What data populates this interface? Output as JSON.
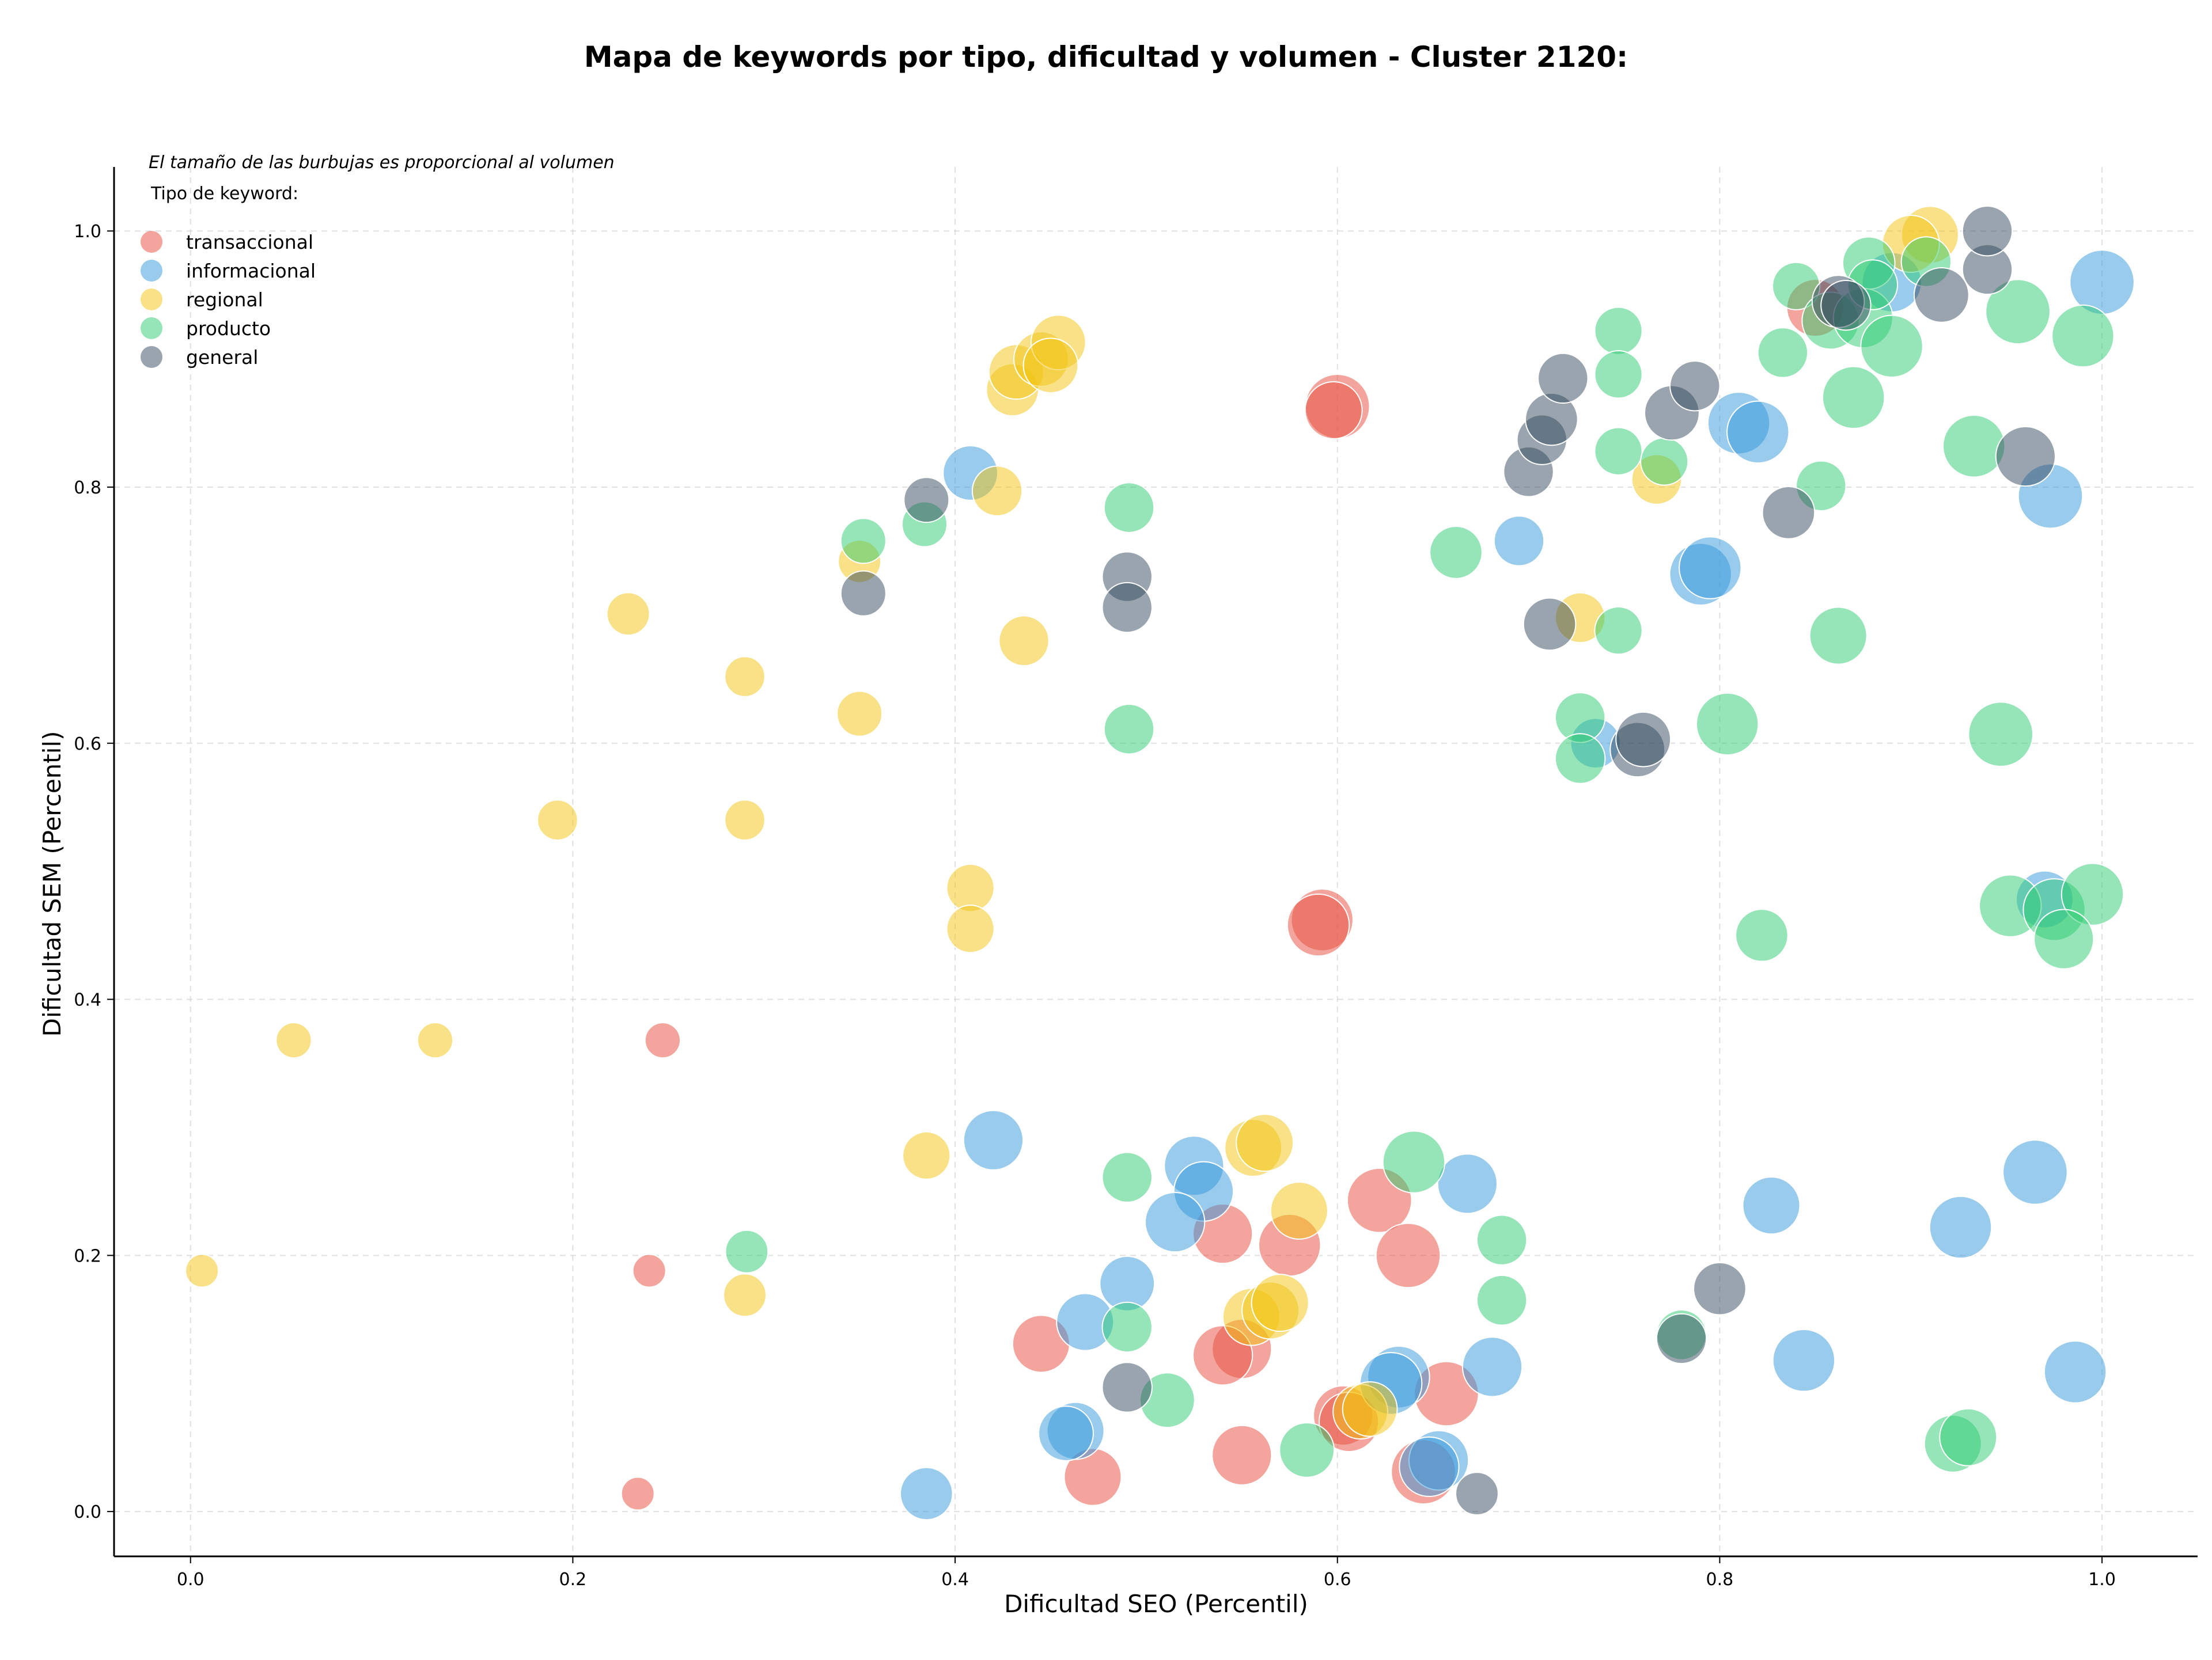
{
  "chart_data": {
    "type": "scatter",
    "title": "Mapa de keywords por tipo, dificultad y volumen - Cluster 2120:",
    "xlabel": "Dificultad SEO (Percentil)",
    "ylabel": "Dificultad SEM (Percentil)",
    "xlim": [
      -0.04,
      1.05
    ],
    "ylim": [
      -0.035,
      1.05
    ],
    "xticks": [
      0.0,
      0.2,
      0.4,
      0.6,
      0.8,
      1.0
    ],
    "yticks": [
      0.0,
      0.2,
      0.4,
      0.6,
      0.8,
      1.0
    ],
    "xtick_labels": [
      "0.0",
      "0.2",
      "0.4",
      "0.6",
      "0.8",
      "1.0"
    ],
    "ytick_labels": [
      "0.0",
      "0.2",
      "0.4",
      "0.6",
      "0.8",
      "1.0"
    ],
    "grid": true,
    "note": "El tamaño de las burbujas es proporcional al volumen",
    "legend_title": "Tipo de keyword:",
    "legend_position": "top-left",
    "series": [
      {
        "name": "transaccional",
        "color": "#e74c3c",
        "points": [
          [
            0.247,
            0.368,
            0.3
          ],
          [
            0.24,
            0.188,
            0.25
          ],
          [
            0.234,
            0.014,
            0.25
          ],
          [
            0.6,
            0.863,
            0.9
          ],
          [
            0.598,
            0.86,
            0.75
          ],
          [
            0.592,
            0.462,
            0.85
          ],
          [
            0.59,
            0.458,
            0.85
          ],
          [
            0.622,
            0.243,
            0.9
          ],
          [
            0.637,
            0.2,
            0.9
          ],
          [
            0.575,
            0.208,
            0.85
          ],
          [
            0.54,
            0.217,
            0.8
          ],
          [
            0.55,
            0.127,
            0.8
          ],
          [
            0.54,
            0.122,
            0.8
          ],
          [
            0.445,
            0.131,
            0.75
          ],
          [
            0.472,
            0.027,
            0.75
          ],
          [
            0.55,
            0.044,
            0.8
          ],
          [
            0.603,
            0.075,
            0.8
          ],
          [
            0.606,
            0.07,
            0.8
          ],
          [
            0.657,
            0.092,
            0.9
          ],
          [
            0.645,
            0.031,
            0.9
          ],
          [
            0.85,
            0.94,
            0.75
          ]
        ]
      },
      {
        "name": "informacional",
        "color": "#3498db",
        "points": [
          [
            0.408,
            0.811,
            0.7
          ],
          [
            0.42,
            0.29,
            0.8
          ],
          [
            0.525,
            0.27,
            0.8
          ],
          [
            0.53,
            0.25,
            0.8
          ],
          [
            0.515,
            0.226,
            0.8
          ],
          [
            0.49,
            0.178,
            0.7
          ],
          [
            0.468,
            0.148,
            0.75
          ],
          [
            0.463,
            0.063,
            0.75
          ],
          [
            0.458,
            0.061,
            0.7
          ],
          [
            0.385,
            0.014,
            0.65
          ],
          [
            0.668,
            0.256,
            0.8
          ],
          [
            0.632,
            0.105,
            0.85
          ],
          [
            0.628,
            0.1,
            0.85
          ],
          [
            0.681,
            0.113,
            0.8
          ],
          [
            0.653,
            0.04,
            0.8
          ],
          [
            0.648,
            0.035,
            0.8
          ],
          [
            0.79,
            0.732,
            0.85
          ],
          [
            0.795,
            0.737,
            0.85
          ],
          [
            0.81,
            0.85,
            0.85
          ],
          [
            0.82,
            0.843,
            0.85
          ],
          [
            0.695,
            0.758,
            0.6
          ],
          [
            0.735,
            0.6,
            0.6
          ],
          [
            0.827,
            0.239,
            0.75
          ],
          [
            0.844,
            0.118,
            0.85
          ],
          [
            0.926,
            0.222,
            0.85
          ],
          [
            0.965,
            0.265,
            0.9
          ],
          [
            0.986,
            0.109,
            0.85
          ],
          [
            0.973,
            0.793,
            0.9
          ],
          [
            1.0,
            0.96,
            0.9
          ],
          [
            0.97,
            0.478,
            0.75
          ],
          [
            0.89,
            0.96,
            0.8
          ]
        ]
      },
      {
        "name": "regional",
        "color": "#f1c40f",
        "points": [
          [
            0.006,
            0.188,
            0.25
          ],
          [
            0.054,
            0.368,
            0.3
          ],
          [
            0.128,
            0.368,
            0.3
          ],
          [
            0.192,
            0.54,
            0.4
          ],
          [
            0.29,
            0.54,
            0.4
          ],
          [
            0.29,
            0.652,
            0.4
          ],
          [
            0.229,
            0.701,
            0.45
          ],
          [
            0.35,
            0.742,
            0.45
          ],
          [
            0.35,
            0.623,
            0.5
          ],
          [
            0.422,
            0.797,
            0.6
          ],
          [
            0.436,
            0.68,
            0.6
          ],
          [
            0.43,
            0.876,
            0.65
          ],
          [
            0.432,
            0.89,
            0.7
          ],
          [
            0.445,
            0.9,
            0.7
          ],
          [
            0.454,
            0.913,
            0.7
          ],
          [
            0.45,
            0.895,
            0.7
          ],
          [
            0.408,
            0.487,
            0.55
          ],
          [
            0.408,
            0.455,
            0.55
          ],
          [
            0.385,
            0.278,
            0.55
          ],
          [
            0.29,
            0.169,
            0.45
          ],
          [
            0.556,
            0.284,
            0.75
          ],
          [
            0.562,
            0.288,
            0.75
          ],
          [
            0.58,
            0.235,
            0.75
          ],
          [
            0.555,
            0.152,
            0.75
          ],
          [
            0.565,
            0.157,
            0.75
          ],
          [
            0.57,
            0.163,
            0.75
          ],
          [
            0.612,
            0.078,
            0.7
          ],
          [
            0.617,
            0.08,
            0.7
          ],
          [
            0.727,
            0.698,
            0.6
          ],
          [
            0.767,
            0.806,
            0.6
          ],
          [
            0.91,
            0.997,
            0.75
          ],
          [
            0.9,
            0.99,
            0.75
          ]
        ]
      },
      {
        "name": "producto",
        "color": "#2ecc71",
        "points": [
          [
            0.352,
            0.758,
            0.5
          ],
          [
            0.384,
            0.771,
            0.5
          ],
          [
            0.491,
            0.784,
            0.6
          ],
          [
            0.491,
            0.611,
            0.6
          ],
          [
            0.291,
            0.203,
            0.45
          ],
          [
            0.49,
            0.261,
            0.6
          ],
          [
            0.49,
            0.144,
            0.6
          ],
          [
            0.511,
            0.087,
            0.7
          ],
          [
            0.584,
            0.048,
            0.7
          ],
          [
            0.64,
            0.273,
            0.85
          ],
          [
            0.686,
            0.212,
            0.6
          ],
          [
            0.686,
            0.165,
            0.6
          ],
          [
            0.662,
            0.749,
            0.65
          ],
          [
            0.727,
            0.62,
            0.6
          ],
          [
            0.727,
            0.588,
            0.6
          ],
          [
            0.747,
            0.922,
            0.55
          ],
          [
            0.747,
            0.888,
            0.55
          ],
          [
            0.747,
            0.828,
            0.55
          ],
          [
            0.771,
            0.82,
            0.55
          ],
          [
            0.747,
            0.688,
            0.55
          ],
          [
            0.78,
            0.138,
            0.6
          ],
          [
            0.804,
            0.615,
            0.85
          ],
          [
            0.822,
            0.45,
            0.65
          ],
          [
            0.833,
            0.905,
            0.6
          ],
          [
            0.84,
            0.957,
            0.55
          ],
          [
            0.853,
            0.801,
            0.6
          ],
          [
            0.862,
            0.684,
            0.75
          ],
          [
            0.858,
            0.93,
            0.75
          ],
          [
            0.87,
            0.87,
            0.85
          ],
          [
            0.878,
            0.975,
            0.65
          ],
          [
            0.875,
            0.932,
            0.8
          ],
          [
            0.89,
            0.91,
            0.85
          ],
          [
            0.908,
            0.976,
            0.6
          ],
          [
            0.933,
            0.832,
            0.85
          ],
          [
            0.956,
            0.937,
            0.9
          ],
          [
            0.947,
            0.607,
            0.9
          ],
          [
            0.99,
            0.918,
            0.85
          ],
          [
            0.952,
            0.473,
            0.85
          ],
          [
            0.975,
            0.47,
            0.85
          ],
          [
            0.995,
            0.482,
            0.85
          ],
          [
            0.98,
            0.447,
            0.8
          ],
          [
            0.922,
            0.053,
            0.75
          ],
          [
            0.93,
            0.058,
            0.75
          ],
          [
            0.88,
            0.958,
            0.6
          ]
        ]
      },
      {
        "name": "general",
        "color": "#34495e",
        "points": [
          [
            0.352,
            0.717,
            0.5
          ],
          [
            0.385,
            0.79,
            0.5
          ],
          [
            0.49,
            0.73,
            0.6
          ],
          [
            0.49,
            0.706,
            0.6
          ],
          [
            0.49,
            0.097,
            0.6
          ],
          [
            0.673,
            0.014,
            0.45
          ],
          [
            0.7,
            0.812,
            0.6
          ],
          [
            0.707,
            0.837,
            0.6
          ],
          [
            0.712,
            0.853,
            0.65
          ],
          [
            0.718,
            0.885,
            0.6
          ],
          [
            0.711,
            0.693,
            0.65
          ],
          [
            0.757,
            0.595,
            0.7
          ],
          [
            0.76,
            0.603,
            0.7
          ],
          [
            0.775,
            0.858,
            0.7
          ],
          [
            0.787,
            0.879,
            0.6
          ],
          [
            0.8,
            0.174,
            0.65
          ],
          [
            0.78,
            0.135,
            0.6
          ],
          [
            0.836,
            0.78,
            0.65
          ],
          [
            0.862,
            0.945,
            0.65
          ],
          [
            0.866,
            0.942,
            0.6
          ],
          [
            0.916,
            0.95,
            0.7
          ],
          [
            0.94,
            0.97,
            0.6
          ],
          [
            0.94,
            1.0,
            0.6
          ],
          [
            0.96,
            0.824,
            0.8
          ]
        ]
      }
    ]
  }
}
